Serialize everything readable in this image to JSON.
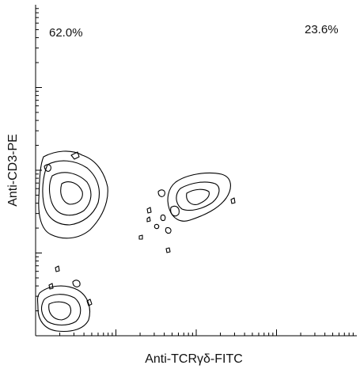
{
  "chart_data": {
    "type": "contour",
    "xlabel": "Anti-TCRγδ-FITC",
    "ylabel": "Anti-CD3-PE",
    "x_scale": "log",
    "y_scale": "log",
    "xlim": [
      1,
      10000
    ],
    "ylim": [
      1,
      10000
    ],
    "quadrant_labels": [
      {
        "position": "top-left",
        "text": "62.0%"
      },
      {
        "position": "top-right",
        "text": "23.6%"
      }
    ],
    "populations": [
      {
        "name_hint": "CD3+ TCRγδ- cluster",
        "center": [
          2.5,
          140
        ],
        "spread": "large"
      },
      {
        "name_hint": "CD3+ TCRγδ+ cluster",
        "center": [
          120,
          190
        ],
        "spread": "medium"
      },
      {
        "name_hint": "CD3- cluster",
        "center": [
          2.5,
          2.5
        ],
        "spread": "small"
      }
    ],
    "grid": false,
    "legend": "none"
  }
}
